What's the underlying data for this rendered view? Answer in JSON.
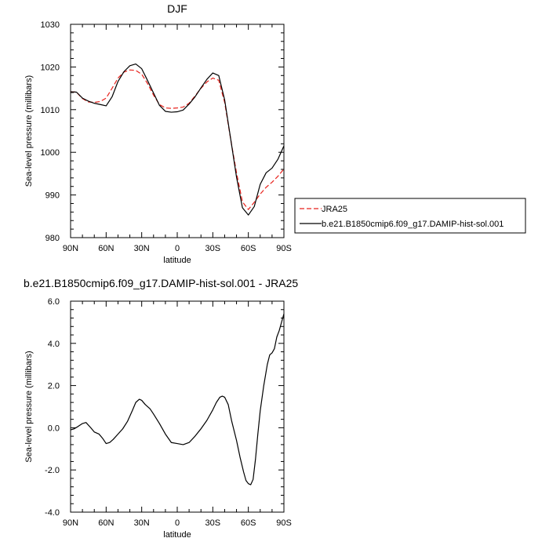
{
  "chart_data": [
    {
      "type": "line",
      "title": "DJF",
      "xlabel": "latitude",
      "ylabel": "Sea-level pressure (millibars)",
      "xlim": [
        90,
        -90
      ],
      "ylim": [
        980,
        1030
      ],
      "x_ticks": [
        90,
        60,
        30,
        0,
        -30,
        -60,
        -90
      ],
      "x_tick_labels": [
        "90N",
        "60N",
        "30N",
        "0",
        "30S",
        "60S",
        "90S"
      ],
      "y_ticks": [
        980,
        990,
        1000,
        1010,
        1020,
        1030
      ],
      "y_tick_labels": [
        "980",
        "990",
        "1000",
        "1010",
        "1020",
        "1030"
      ],
      "x": [
        90,
        85,
        80,
        75,
        70,
        65,
        60,
        55,
        50,
        45,
        40,
        35,
        30,
        25,
        20,
        15,
        10,
        5,
        0,
        -5,
        -10,
        -15,
        -20,
        -25,
        -30,
        -35,
        -40,
        -45,
        -50,
        -55,
        -60,
        -65,
        -70,
        -75,
        -80,
        -85,
        -90
      ],
      "series": [
        {
          "name": "JRA25",
          "color": "#e8221c",
          "dash": true,
          "values": [
            1014.2,
            1014.1,
            1012.6,
            1011.8,
            1011.7,
            1011.9,
            1012.7,
            1015.0,
            1017.4,
            1018.8,
            1019.3,
            1019.2,
            1018.3,
            1016.1,
            1013.4,
            1011.2,
            1010.4,
            1010.3,
            1010.4,
            1010.6,
            1011.5,
            1013.2,
            1015.0,
            1016.5,
            1017.4,
            1016.9,
            1011.7,
            1003.2,
            995.2,
            988.4,
            986.6,
            988.3,
            990.2,
            991.8,
            993.0,
            994.4,
            996.1
          ]
        },
        {
          "name": "b.e21.B1850cmip6.f09_g17.DAMIP-hist-sol.001",
          "color": "#000000",
          "dash": false,
          "values": [
            1014.2,
            1014.1,
            1012.7,
            1012.0,
            1011.5,
            1011.2,
            1010.9,
            1013.0,
            1016.6,
            1018.9,
            1020.3,
            1020.7,
            1019.6,
            1016.8,
            1013.9,
            1011.0,
            1009.6,
            1009.4,
            1009.5,
            1009.9,
            1011.3,
            1013.0,
            1015.1,
            1017.1,
            1018.6,
            1018.0,
            1012.3,
            1003.3,
            994.2,
            987.0,
            985.3,
            987.3,
            992.5,
            995.2,
            996.3,
            998.4,
            1001.5
          ]
        }
      ],
      "legend": "right"
    },
    {
      "type": "line",
      "title": "b.e21.B1850cmip6.f09_g17.DAMIP-hist-sol.001 - JRA25",
      "xlabel": "latitude",
      "ylabel": "Sea-level pressure (millibars)",
      "xlim": [
        90,
        -90
      ],
      "ylim": [
        -4.0,
        6.0
      ],
      "x_ticks": [
        90,
        60,
        30,
        0,
        -30,
        -60,
        -90
      ],
      "x_tick_labels": [
        "90N",
        "60N",
        "30N",
        "0",
        "30S",
        "60S",
        "90S"
      ],
      "y_ticks": [
        -4,
        -2,
        0,
        2,
        4,
        6
      ],
      "y_tick_labels": [
        "-4.0",
        "-2.0",
        "0.0",
        "2.0",
        "4.0",
        "6.0"
      ],
      "x": [
        90,
        87,
        84,
        80,
        77,
        73,
        70,
        66,
        63,
        60,
        57,
        54,
        50,
        46,
        42,
        38,
        35,
        32,
        30,
        27,
        23,
        20,
        15,
        10,
        5,
        0,
        -5,
        -10,
        -15,
        -20,
        -25,
        -30,
        -33,
        -36,
        -38,
        -40,
        -43,
        -46,
        -50,
        -53,
        -56,
        -58,
        -60,
        -62,
        -64,
        -66,
        -68,
        -70,
        -73,
        -76,
        -78,
        -80,
        -82,
        -84,
        -86,
        -88,
        -90
      ],
      "series": [
        {
          "name": "",
          "color": "#000000",
          "dash": false,
          "values": [
            -0.1,
            -0.05,
            0.05,
            0.2,
            0.25,
            0.0,
            -0.2,
            -0.3,
            -0.5,
            -0.75,
            -0.7,
            -0.55,
            -0.3,
            -0.05,
            0.3,
            0.8,
            1.2,
            1.35,
            1.3,
            1.1,
            0.9,
            0.65,
            0.2,
            -0.3,
            -0.7,
            -0.75,
            -0.8,
            -0.7,
            -0.4,
            -0.05,
            0.35,
            0.85,
            1.2,
            1.45,
            1.5,
            1.45,
            1.1,
            0.3,
            -0.6,
            -1.4,
            -2.1,
            -2.5,
            -2.65,
            -2.7,
            -2.45,
            -1.5,
            -0.3,
            0.8,
            2.0,
            3.0,
            3.45,
            3.55,
            3.75,
            4.3,
            4.6,
            5.0,
            5.4
          ]
        }
      ]
    }
  ]
}
